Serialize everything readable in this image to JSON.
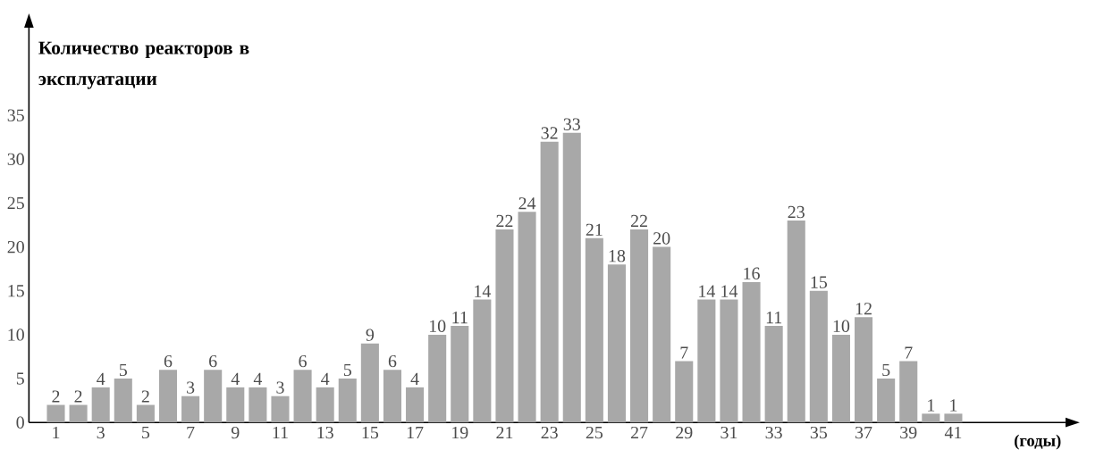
{
  "chart_data": {
    "type": "bar",
    "ylabel": "Количество реакторов в эксплуатации",
    "xlabel": "(годы)",
    "categories": [
      "1",
      null,
      "3",
      null,
      "5",
      null,
      "7",
      null,
      "9",
      null,
      "11",
      null,
      "13",
      null,
      "15",
      null,
      "17",
      null,
      "19",
      null,
      "21",
      null,
      "23",
      null,
      "25",
      null,
      "27",
      null,
      "29",
      null,
      "31",
      null,
      "33",
      null,
      "35",
      null,
      "37",
      null,
      "39",
      null,
      "41"
    ],
    "values": [
      2,
      2,
      4,
      5,
      2,
      6,
      3,
      6,
      4,
      4,
      3,
      6,
      4,
      5,
      9,
      6,
      4,
      10,
      11,
      14,
      22,
      24,
      32,
      33,
      21,
      18,
      22,
      20,
      7,
      14,
      14,
      16,
      11,
      23,
      15,
      10,
      12,
      5,
      7,
      1,
      1
    ],
    "color": "#a8a8a8",
    "ylim": [
      0,
      45
    ],
    "yticks": [
      0,
      5,
      10,
      15,
      20,
      25,
      30,
      35
    ],
    "data_labels": true
  }
}
